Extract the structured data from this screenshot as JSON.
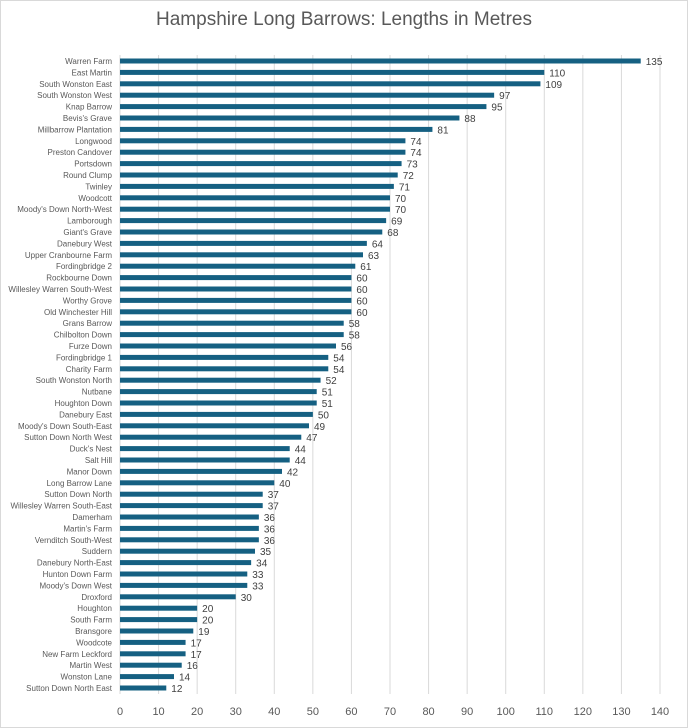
{
  "chart_data": {
    "type": "bar",
    "orientation": "horizontal",
    "title": "Hampshire Long Barrows:  Lengths in Metres",
    "xlabel": "",
    "ylabel": "",
    "xlim": [
      0,
      140
    ],
    "xticks": [
      0,
      10,
      20,
      30,
      40,
      50,
      60,
      70,
      80,
      90,
      100,
      110,
      120,
      130,
      140
    ],
    "grid": "vertical",
    "bar_color": "#156082",
    "categories": [
      "Warren Farm",
      "East Martin",
      "South Wonston East",
      "South Wonston West",
      "Knap Barrow",
      "Bevis's Grave",
      "Millbarrow Plantation",
      "Longwood",
      "Preston Candover",
      "Portsdown",
      "Round Clump",
      "Twinley",
      "Woodcott",
      "Moody's Down North-West",
      "Lamborough",
      "Giant's Grave",
      "Danebury West",
      "Upper Cranbourne Farm",
      "Fordingbridge 2",
      "Rockbourne Down",
      "Willesley Warren South-West",
      "Worthy Grove",
      "Old Winchester Hill",
      "Grans Barrow",
      "Chilbolton Down",
      "Furze Down",
      "Fordingbridge 1",
      "Charity Farm",
      "South Wonston North",
      "Nutbane",
      "Houghton Down",
      "Danebury East",
      "Moody's Down South-East",
      "Sutton Down North West",
      "Duck's Nest",
      "Salt Hill",
      "Manor Down",
      "Long Barrow Lane",
      "Sutton Down North",
      "Willesley Warren South-East",
      "Damerham",
      "Martin's Farm",
      "Vernditch South-West",
      "Suddern",
      "Danebury North-East",
      "Hunton Down Farm",
      "Moody's Down West",
      "Droxford",
      "Houghton",
      "South Farm",
      "Bransgore",
      "Woodcote",
      "New Farm Leckford",
      "Martin West",
      "Wonston Lane",
      "Sutton Down North East"
    ],
    "values": [
      135,
      110,
      109,
      97,
      95,
      88,
      81,
      74,
      74,
      73,
      72,
      71,
      70,
      70,
      69,
      68,
      64,
      63,
      61,
      60,
      60,
      60,
      60,
      58,
      58,
      56,
      54,
      54,
      52,
      51,
      51,
      50,
      49,
      47,
      44,
      44,
      42,
      40,
      37,
      37,
      36,
      36,
      36,
      35,
      34,
      33,
      33,
      30,
      20,
      20,
      19,
      17,
      17,
      16,
      14,
      12
    ]
  }
}
